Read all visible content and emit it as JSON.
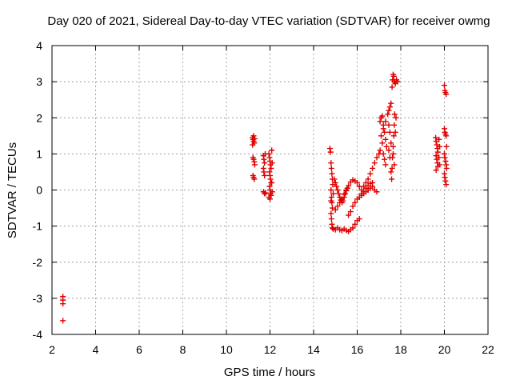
{
  "chart_data": {
    "type": "scatter",
    "title": "Day 020 of 2021, Sidereal Day-to-day VTEC variation (SDTVAR) for receiver owmg",
    "xlabel": "GPS time / hours",
    "ylabel": "SDTVAR / TECUs",
    "xlim": [
      2,
      22
    ],
    "ylim": [
      -4,
      4
    ],
    "grid": true,
    "marker": "plus",
    "marker_color": "#e00000",
    "xticks": [
      2,
      4,
      6,
      8,
      10,
      12,
      14,
      16,
      18,
      20,
      22
    ],
    "yticks": [
      -4,
      -3,
      -2,
      -1,
      0,
      1,
      2,
      3,
      4
    ],
    "series": [
      {
        "name": "SDTVAR",
        "points": [
          [
            2.5,
            -2.95
          ],
          [
            2.5,
            -3.05
          ],
          [
            2.5,
            -3.15
          ],
          [
            2.5,
            -3.62
          ],
          [
            11.2,
            1.45
          ],
          [
            11.22,
            1.4
          ],
          [
            11.25,
            1.35
          ],
          [
            11.28,
            1.3
          ],
          [
            11.2,
            1.25
          ],
          [
            11.25,
            1.5
          ],
          [
            11.3,
            1.42
          ],
          [
            11.22,
            0.9
          ],
          [
            11.25,
            0.85
          ],
          [
            11.28,
            0.78
          ],
          [
            11.3,
            0.7
          ],
          [
            11.22,
            0.4
          ],
          [
            11.25,
            0.35
          ],
          [
            11.28,
            0.3
          ],
          [
            11.7,
            0.95
          ],
          [
            11.72,
            0.85
          ],
          [
            11.75,
            0.75
          ],
          [
            11.7,
            0.6
          ],
          [
            11.72,
            0.5
          ],
          [
            11.75,
            0.4
          ],
          [
            11.7,
            -0.05
          ],
          [
            11.75,
            -0.1
          ],
          [
            11.8,
            -0.08
          ],
          [
            11.78,
            1.0
          ],
          [
            11.95,
            1.0
          ],
          [
            11.98,
            0.9
          ],
          [
            12.0,
            0.8
          ],
          [
            12.02,
            0.7
          ],
          [
            12.05,
            0.6
          ],
          [
            11.98,
            0.5
          ],
          [
            12.0,
            0.4
          ],
          [
            12.02,
            0.3
          ],
          [
            12.05,
            0.2
          ],
          [
            11.98,
            0.1
          ],
          [
            12.0,
            0.0
          ],
          [
            12.02,
            -0.1
          ],
          [
            12.05,
            -0.15
          ],
          [
            11.95,
            -0.2
          ],
          [
            12.08,
            1.1
          ],
          [
            12.1,
            0.75
          ],
          [
            12.08,
            0.2
          ],
          [
            12.1,
            -0.05
          ],
          [
            12.0,
            -0.25
          ],
          [
            14.75,
            1.15
          ],
          [
            14.78,
            1.05
          ],
          [
            14.8,
            0.75
          ],
          [
            14.82,
            0.6
          ],
          [
            14.84,
            0.45
          ],
          [
            14.86,
            0.3
          ],
          [
            14.88,
            0.15
          ],
          [
            14.8,
            0.0
          ],
          [
            14.82,
            -0.2
          ],
          [
            14.84,
            -0.35
          ],
          [
            14.86,
            -0.5
          ],
          [
            14.8,
            -0.65
          ],
          [
            14.82,
            -0.8
          ],
          [
            14.84,
            -0.95
          ],
          [
            14.86,
            -1.05
          ],
          [
            14.8,
            -0.3
          ],
          [
            14.9,
            -0.1
          ],
          [
            14.95,
            0.3
          ],
          [
            15.0,
            0.2
          ],
          [
            15.05,
            0.1
          ],
          [
            15.1,
            0.0
          ],
          [
            15.15,
            -0.1
          ],
          [
            15.2,
            -0.2
          ],
          [
            15.25,
            -0.28
          ],
          [
            15.3,
            -0.35
          ],
          [
            15.35,
            -0.3
          ],
          [
            15.4,
            -0.2
          ],
          [
            15.45,
            -0.1
          ],
          [
            15.5,
            -0.02
          ],
          [
            15.55,
            0.05
          ],
          [
            14.9,
            -1.08
          ],
          [
            15.0,
            -1.1
          ],
          [
            15.1,
            -1.05
          ],
          [
            15.2,
            -1.1
          ],
          [
            15.3,
            -1.12
          ],
          [
            15.4,
            -1.08
          ],
          [
            15.5,
            -1.12
          ],
          [
            15.6,
            -1.15
          ],
          [
            15.7,
            -1.1
          ],
          [
            15.8,
            -1.05
          ],
          [
            15.9,
            -0.95
          ],
          [
            16.0,
            -0.85
          ],
          [
            16.1,
            -0.8
          ],
          [
            15.0,
            -0.55
          ],
          [
            15.1,
            -0.45
          ],
          [
            15.2,
            -0.35
          ],
          [
            15.3,
            -0.25
          ],
          [
            15.4,
            -0.12
          ],
          [
            15.5,
            0.0
          ],
          [
            15.6,
            0.12
          ],
          [
            15.7,
            0.22
          ],
          [
            15.8,
            0.28
          ],
          [
            15.9,
            0.25
          ],
          [
            16.0,
            0.2
          ],
          [
            16.1,
            0.1
          ],
          [
            16.2,
            0.0
          ],
          [
            15.6,
            -0.7
          ],
          [
            15.7,
            -0.6
          ],
          [
            15.8,
            -0.45
          ],
          [
            15.9,
            -0.35
          ],
          [
            16.0,
            -0.25
          ],
          [
            16.1,
            -0.2
          ],
          [
            16.2,
            -0.1
          ],
          [
            16.3,
            -0.05
          ],
          [
            16.4,
            0.05
          ],
          [
            16.5,
            0.12
          ],
          [
            16.6,
            0.18
          ],
          [
            16.7,
            0.1
          ],
          [
            16.8,
            0.0
          ],
          [
            16.9,
            -0.05
          ],
          [
            16.3,
            0.1
          ],
          [
            16.4,
            0.2
          ],
          [
            16.5,
            0.3
          ],
          [
            16.6,
            0.45
          ],
          [
            16.7,
            0.6
          ],
          [
            16.8,
            0.75
          ],
          [
            16.9,
            0.9
          ],
          [
            17.0,
            1.0
          ],
          [
            17.05,
            1.1
          ],
          [
            16.2,
            -0.15
          ],
          [
            16.3,
            -0.1
          ],
          [
            16.4,
            -0.05
          ],
          [
            16.5,
            0.0
          ],
          [
            16.6,
            0.05
          ],
          [
            16.7,
            0.2
          ],
          [
            17.05,
            1.9
          ],
          [
            17.1,
            2.0
          ],
          [
            17.15,
            2.05
          ],
          [
            17.2,
            1.8
          ],
          [
            17.25,
            1.6
          ],
          [
            17.3,
            1.4
          ],
          [
            17.35,
            1.2
          ],
          [
            17.1,
            1.5
          ],
          [
            17.15,
            1.3
          ],
          [
            17.2,
            1.0
          ],
          [
            17.25,
            0.85
          ],
          [
            17.3,
            0.7
          ],
          [
            17.2,
            1.7
          ],
          [
            17.3,
            1.9
          ],
          [
            17.4,
            2.1
          ],
          [
            17.45,
            2.2
          ],
          [
            17.5,
            2.3
          ],
          [
            17.55,
            2.4
          ],
          [
            17.45,
            1.8
          ],
          [
            17.5,
            1.6
          ],
          [
            17.55,
            1.3
          ],
          [
            17.45,
            1.1
          ],
          [
            17.5,
            0.9
          ],
          [
            17.55,
            0.5
          ],
          [
            17.58,
            0.3
          ],
          [
            17.6,
            0.6
          ],
          [
            17.62,
            0.9
          ],
          [
            17.65,
            1.2
          ],
          [
            17.68,
            1.5
          ],
          [
            17.7,
            1.8
          ],
          [
            17.72,
            2.1
          ],
          [
            17.65,
            1.0
          ],
          [
            17.7,
            0.7
          ],
          [
            17.75,
            1.6
          ],
          [
            17.78,
            2.0
          ],
          [
            17.6,
            2.85
          ],
          [
            17.62,
            3.05
          ],
          [
            17.65,
            3.2
          ],
          [
            17.68,
            3.15
          ],
          [
            17.7,
            3.0
          ],
          [
            17.75,
            2.95
          ],
          [
            17.8,
            3.05
          ],
          [
            17.85,
            3.0
          ],
          [
            19.6,
            1.45
          ],
          [
            19.62,
            1.35
          ],
          [
            19.65,
            1.25
          ],
          [
            19.68,
            1.15
          ],
          [
            19.7,
            1.05
          ],
          [
            19.62,
            0.95
          ],
          [
            19.65,
            0.85
          ],
          [
            19.68,
            0.75
          ],
          [
            19.7,
            0.65
          ],
          [
            19.62,
            0.55
          ],
          [
            19.75,
            1.4
          ],
          [
            19.78,
            1.2
          ],
          [
            19.75,
            0.9
          ],
          [
            19.78,
            0.7
          ],
          [
            20.0,
            2.9
          ],
          [
            20.02,
            2.75
          ],
          [
            20.05,
            2.7
          ],
          [
            20.08,
            2.65
          ],
          [
            20.0,
            1.7
          ],
          [
            20.02,
            1.6
          ],
          [
            20.05,
            1.55
          ],
          [
            20.08,
            1.5
          ],
          [
            20.0,
            1.0
          ],
          [
            20.02,
            0.9
          ],
          [
            20.05,
            0.8
          ],
          [
            20.08,
            0.7
          ],
          [
            20.0,
            0.45
          ],
          [
            20.02,
            0.35
          ],
          [
            20.05,
            0.25
          ],
          [
            20.08,
            0.15
          ],
          [
            20.1,
            1.2
          ],
          [
            20.1,
            0.6
          ]
        ]
      }
    ]
  }
}
